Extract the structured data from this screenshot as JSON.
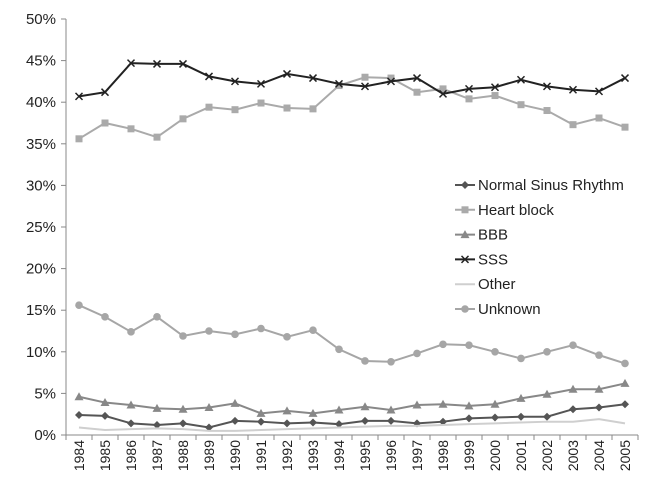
{
  "chart_data": {
    "type": "line",
    "title": "",
    "xlabel": "",
    "ylabel": "",
    "ylim": [
      0,
      50
    ],
    "y_ticks": [
      "0%",
      "5%",
      "10%",
      "15%",
      "20%",
      "25%",
      "30%",
      "35%",
      "40%",
      "45%",
      "50%"
    ],
    "categories": [
      "1984",
      "1985",
      "1986",
      "1987",
      "1988",
      "1989",
      "1990",
      "1991",
      "1992",
      "1993",
      "1994",
      "1995",
      "1996",
      "1997",
      "1998",
      "1999",
      "2000",
      "2001",
      "2002",
      "2003",
      "2004",
      "2005"
    ],
    "grid": false,
    "legend_position": "right",
    "series": [
      {
        "name": "Normal Sinus Rhythm",
        "color": "#555555",
        "marker": "diamond",
        "values": [
          2.4,
          2.3,
          1.4,
          1.2,
          1.4,
          0.9,
          1.7,
          1.6,
          1.4,
          1.5,
          1.3,
          1.7,
          1.7,
          1.4,
          1.6,
          2.0,
          2.1,
          2.2,
          2.2,
          3.1,
          3.3,
          3.7
        ]
      },
      {
        "name": "Heart block",
        "color": "#aaaaaa",
        "marker": "square",
        "values": [
          35.6,
          37.5,
          36.8,
          35.8,
          38.0,
          39.4,
          39.1,
          39.9,
          39.3,
          39.2,
          42.0,
          43.0,
          42.9,
          41.2,
          41.6,
          40.4,
          40.8,
          39.7,
          39.0,
          37.3,
          38.1,
          37.0
        ]
      },
      {
        "name": "BBB",
        "color": "#888888",
        "marker": "triangle",
        "values": [
          4.6,
          3.9,
          3.6,
          3.2,
          3.1,
          3.3,
          3.8,
          2.6,
          2.9,
          2.6,
          3.0,
          3.4,
          3.0,
          3.6,
          3.7,
          3.5,
          3.7,
          4.4,
          4.9,
          5.5,
          5.5,
          6.2
        ]
      },
      {
        "name": "SSS",
        "color": "#222222",
        "marker": "x",
        "values": [
          40.7,
          41.2,
          44.7,
          44.6,
          44.6,
          43.1,
          42.5,
          42.2,
          43.4,
          42.9,
          42.2,
          41.9,
          42.5,
          42.9,
          41.0,
          41.6,
          41.8,
          42.7,
          41.9,
          41.5,
          41.3,
          42.9
        ]
      },
      {
        "name": "Other",
        "color": "#cfcfcf",
        "marker": "none",
        "values": [
          0.9,
          0.6,
          0.7,
          0.8,
          0.7,
          0.5,
          0.5,
          0.6,
          0.7,
          0.8,
          0.9,
          1.0,
          1.1,
          1.1,
          1.2,
          1.3,
          1.4,
          1.5,
          1.6,
          1.6,
          1.9,
          1.4
        ]
      },
      {
        "name": "Unknown",
        "color": "#a6a6a6",
        "marker": "circle",
        "values": [
          15.6,
          14.2,
          12.4,
          14.2,
          11.9,
          12.5,
          12.1,
          12.8,
          11.8,
          12.6,
          10.3,
          8.9,
          8.8,
          9.8,
          10.9,
          10.8,
          10.0,
          9.2,
          10.0,
          10.8,
          9.6,
          8.6
        ]
      }
    ]
  }
}
